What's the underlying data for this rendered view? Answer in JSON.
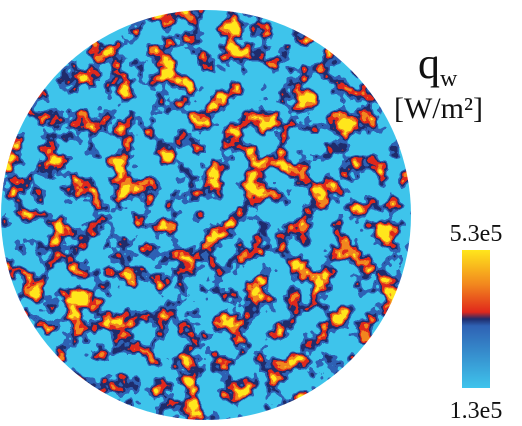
{
  "chart_data": {
    "type": "contour",
    "title": {
      "symbol": "q",
      "subscript": "w"
    },
    "unit": "[W/m²]",
    "colorbar": {
      "lim": [
        130000,
        530000
      ],
      "ticks": [
        {
          "value": 530000,
          "label": "5.3e5"
        },
        {
          "value": 130000,
          "label": "1.3e5"
        }
      ],
      "colormap": [
        "#3fc4ec",
        "#2f62b4",
        "#1f2c6c",
        "#e0281c",
        "#f2871e",
        "#ffe61c"
      ]
    }
  }
}
